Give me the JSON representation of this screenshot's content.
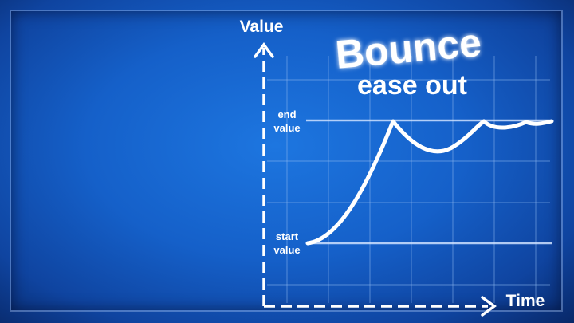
{
  "title": "Bounce",
  "subtitle": "ease out",
  "y_axis_label": "Value",
  "x_axis_label": "Time",
  "end_label_line1": "end",
  "end_label_line2": "value",
  "start_label_line1": "start",
  "start_label_line2": "value",
  "colors": {
    "background": "#1565d0",
    "grid": "#8fb8f0",
    "curve": "#ffffff",
    "text": "#ffffff"
  }
}
